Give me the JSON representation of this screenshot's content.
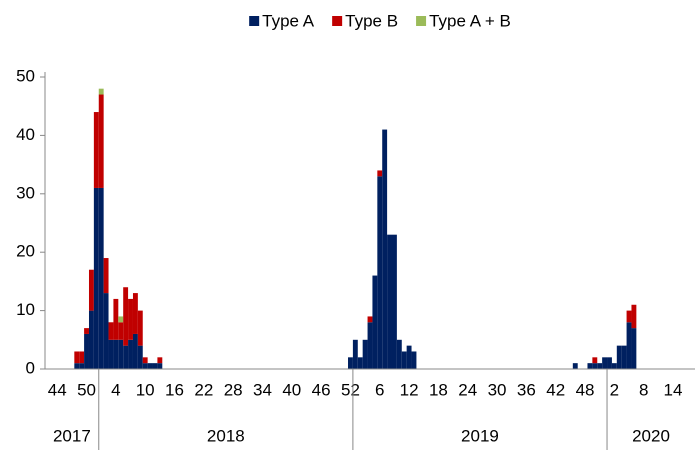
{
  "chart_data": {
    "type": "stacked_bar",
    "categories": [
      null,
      null,
      "44",
      null,
      null,
      null,
      null,
      null,
      "50",
      null,
      null,
      null,
      null,
      null,
      "4",
      null,
      null,
      null,
      null,
      null,
      "10",
      null,
      null,
      null,
      null,
      null,
      "16",
      null,
      null,
      null,
      null,
      null,
      "22",
      null,
      null,
      null,
      null,
      null,
      "28",
      null,
      null,
      null,
      null,
      null,
      "34",
      null,
      null,
      null,
      null,
      null,
      "40",
      null,
      null,
      null,
      null,
      null,
      "46",
      null,
      null,
      null,
      null,
      null,
      "52",
      null,
      null,
      null,
      null,
      null,
      "6",
      null,
      null,
      null,
      null,
      null,
      "12",
      null,
      null,
      null,
      null,
      null,
      "18",
      null,
      null,
      null,
      null,
      null,
      "24",
      null,
      null,
      null,
      null,
      null,
      "30",
      null,
      null,
      null,
      null,
      null,
      "36",
      null,
      null,
      null,
      null,
      null,
      "42",
      null,
      null,
      null,
      null,
      null,
      "48",
      null,
      null,
      null,
      null,
      null,
      "2",
      null,
      null,
      null,
      null,
      null,
      "8",
      null,
      null,
      null,
      null,
      null,
      "14",
      null,
      null,
      null,
      null
    ],
    "year_groups": [
      {
        "label": "2017",
        "weeks": 11
      },
      {
        "label": "2018",
        "weeks": 52
      },
      {
        "label": "2019",
        "weeks": 52
      },
      {
        "label": "2020",
        "weeks": 18
      }
    ],
    "series": [
      {
        "name": "Type A",
        "color": "#002060",
        "values": [
          0,
          0,
          0,
          0,
          0,
          0,
          1,
          1,
          6,
          10,
          31,
          31,
          13,
          5,
          5,
          5,
          4,
          5,
          6,
          4,
          1,
          1,
          1,
          1,
          0,
          0,
          0,
          0,
          0,
          0,
          0,
          0,
          0,
          0,
          0,
          0,
          0,
          0,
          0,
          0,
          0,
          0,
          0,
          0,
          0,
          0,
          0,
          0,
          0,
          0,
          0,
          0,
          0,
          0,
          0,
          0,
          0,
          0,
          0,
          0,
          0,
          0,
          2,
          5,
          2,
          5,
          8,
          16,
          33,
          41,
          23,
          23,
          5,
          3,
          4,
          3,
          0,
          0,
          0,
          0,
          0,
          0,
          0,
          0,
          0,
          0,
          0,
          0,
          0,
          0,
          0,
          0,
          0,
          0,
          0,
          0,
          0,
          0,
          0,
          0,
          0,
          0,
          0,
          0,
          0,
          0,
          0,
          0,
          1,
          0,
          0,
          1,
          1,
          1,
          2,
          2,
          1,
          4,
          4,
          8,
          7,
          0,
          0,
          0,
          0,
          0,
          0,
          0,
          0,
          0,
          0,
          0,
          0
        ]
      },
      {
        "name": "Type B",
        "color": "#c00000",
        "values": [
          0,
          0,
          0,
          0,
          0,
          0,
          2,
          2,
          1,
          7,
          13,
          16,
          6,
          3,
          7,
          3,
          10,
          7,
          7,
          6,
          1,
          0,
          0,
          1,
          0,
          0,
          0,
          0,
          0,
          0,
          0,
          0,
          0,
          0,
          0,
          0,
          0,
          0,
          0,
          0,
          0,
          0,
          0,
          0,
          0,
          0,
          0,
          0,
          0,
          0,
          0,
          0,
          0,
          0,
          0,
          0,
          0,
          0,
          0,
          0,
          0,
          0,
          0,
          0,
          0,
          0,
          1,
          0,
          1,
          0,
          0,
          0,
          0,
          0,
          0,
          0,
          0,
          0,
          0,
          0,
          0,
          0,
          0,
          0,
          0,
          0,
          0,
          0,
          0,
          0,
          0,
          0,
          0,
          0,
          0,
          0,
          0,
          0,
          0,
          0,
          0,
          0,
          0,
          0,
          0,
          0,
          0,
          0,
          0,
          0,
          0,
          0,
          1,
          0,
          0,
          0,
          0,
          0,
          0,
          2,
          4,
          0,
          0,
          0,
          0,
          0,
          0,
          0,
          0,
          0,
          0,
          0,
          0
        ]
      },
      {
        "name": "Type A + B",
        "color": "#9bbb59",
        "values": [
          0,
          0,
          0,
          0,
          0,
          0,
          0,
          0,
          0,
          0,
          0,
          1,
          0,
          0,
          0,
          1,
          0,
          0,
          0,
          0,
          0,
          0,
          0,
          0,
          0,
          0,
          0,
          0,
          0,
          0,
          0,
          0,
          0,
          0,
          0,
          0,
          0,
          0,
          0,
          0,
          0,
          0,
          0,
          0,
          0,
          0,
          0,
          0,
          0,
          0,
          0,
          0,
          0,
          0,
          0,
          0,
          0,
          0,
          0,
          0,
          0,
          0,
          0,
          0,
          0,
          0,
          0,
          0,
          0,
          0,
          0,
          0,
          0,
          0,
          0,
          0,
          0,
          0,
          0,
          0,
          0,
          0,
          0,
          0,
          0,
          0,
          0,
          0,
          0,
          0,
          0,
          0,
          0,
          0,
          0,
          0,
          0,
          0,
          0,
          0,
          0,
          0,
          0,
          0,
          0,
          0,
          0,
          0,
          0,
          0,
          0,
          0,
          0,
          0,
          0,
          0,
          0,
          0,
          0,
          0,
          0,
          0,
          0,
          0,
          0,
          0,
          0,
          0,
          0,
          0,
          0,
          0,
          0
        ]
      }
    ],
    "ylim": [
      0,
      50
    ],
    "yticks": [
      0,
      10,
      20,
      30,
      40,
      50
    ],
    "grid": false,
    "legend": "top"
  }
}
